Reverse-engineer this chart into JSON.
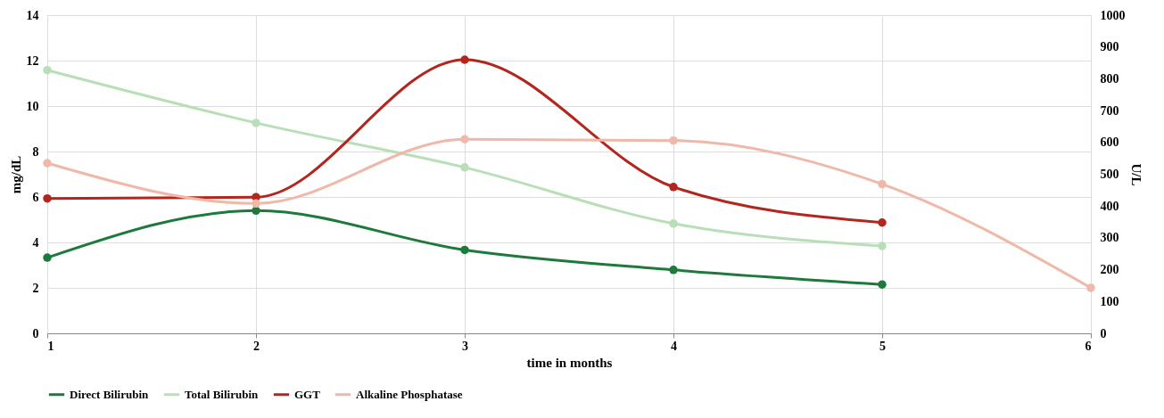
{
  "chart_data": {
    "type": "line",
    "xlabel": "time in months",
    "ylabel": "mg/dL",
    "y2label": "U/L",
    "x": [
      1,
      2,
      3,
      4,
      5,
      6
    ],
    "series": [
      {
        "name": "Direct Bilirubin",
        "color": "#1e7a3c",
        "values": [
          3.33,
          5.4,
          3.67,
          2.79,
          2.15,
          null
        ]
      },
      {
        "name": "Total Bilirubin",
        "color": "#b8dfb8",
        "values": [
          11.58,
          9.26,
          7.3,
          4.83,
          3.84,
          null
        ]
      },
      {
        "name": "GGT",
        "color": "#b3261e",
        "axis": "y2",
        "values": [
          424,
          428,
          860,
          460,
          348,
          null
        ]
      },
      {
        "name": "Alkaline Phosphatase",
        "color": "#f0b8a8",
        "axis": "y2",
        "values": [
          535,
          408,
          610,
          606,
          469,
          143
        ]
      }
    ],
    "xlim": [
      1,
      6
    ],
    "xticks": [
      1,
      2,
      3,
      4,
      5,
      6
    ],
    "ylim": [
      0,
      14
    ],
    "yticks": [
      0,
      2,
      4,
      6,
      8,
      10,
      12,
      14
    ],
    "y2lim": [
      0,
      1000
    ],
    "y2ticks": [
      0,
      100,
      200,
      300,
      400,
      500,
      600,
      700,
      800,
      900,
      1000
    ],
    "grid": true,
    "legend": "bottom",
    "marker": "circle",
    "line_style": "solid"
  }
}
